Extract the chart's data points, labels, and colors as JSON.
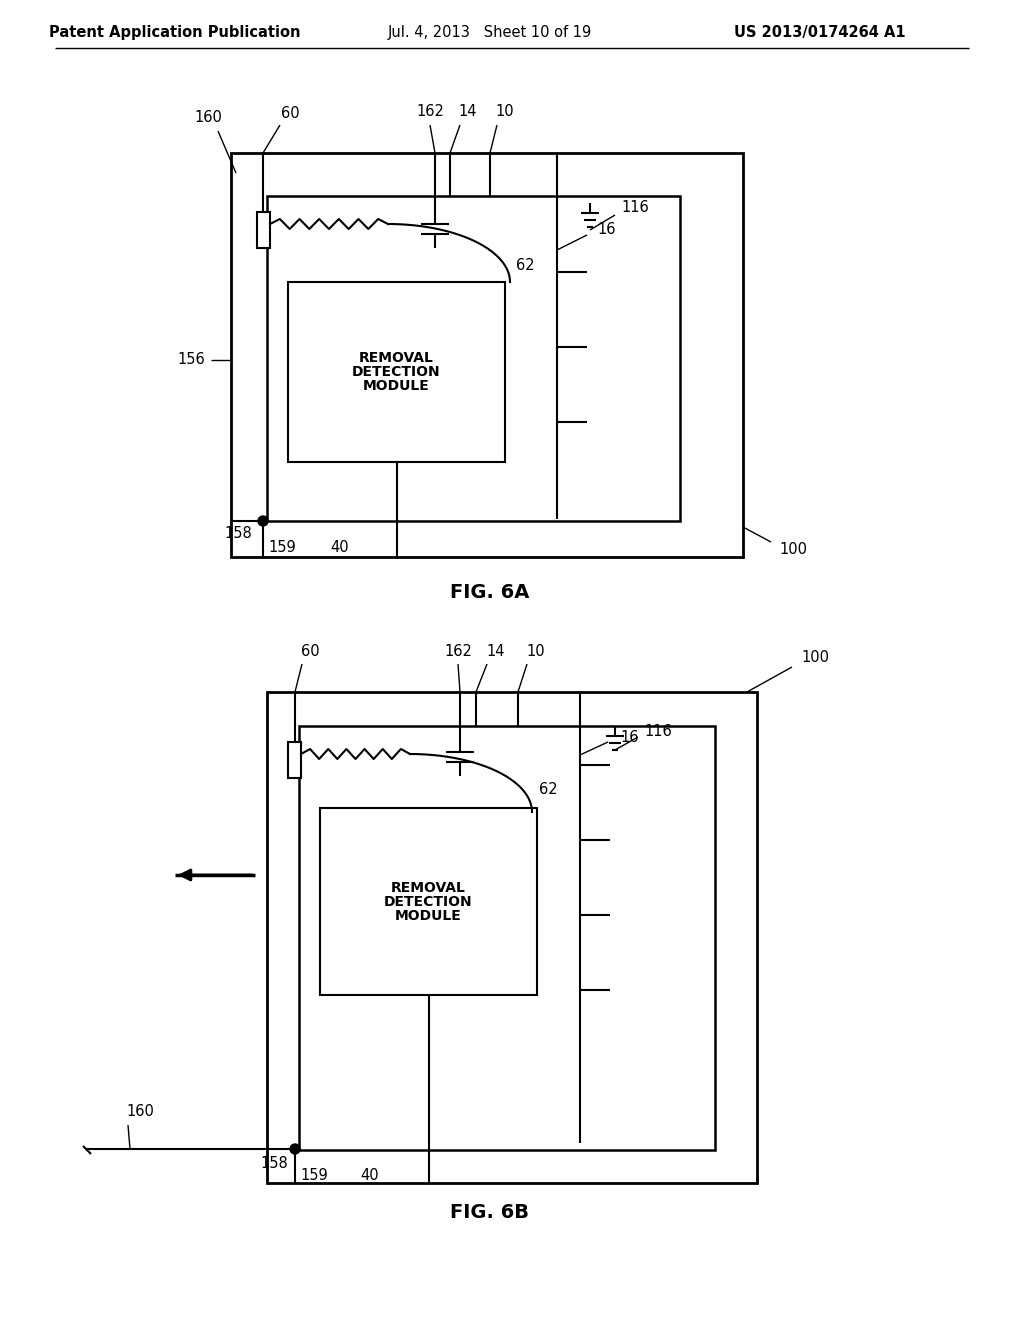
{
  "bg_color": "#ffffff",
  "header_left": "Patent Application Publication",
  "header_mid": "Jul. 4, 2013   Sheet 10 of 19",
  "header_right": "US 2013/0174264 A1",
  "fig_label_A": "FIG. 6A",
  "fig_label_B": "FIG. 6B",
  "line_color": "#000000",
  "text_color": "#000000"
}
